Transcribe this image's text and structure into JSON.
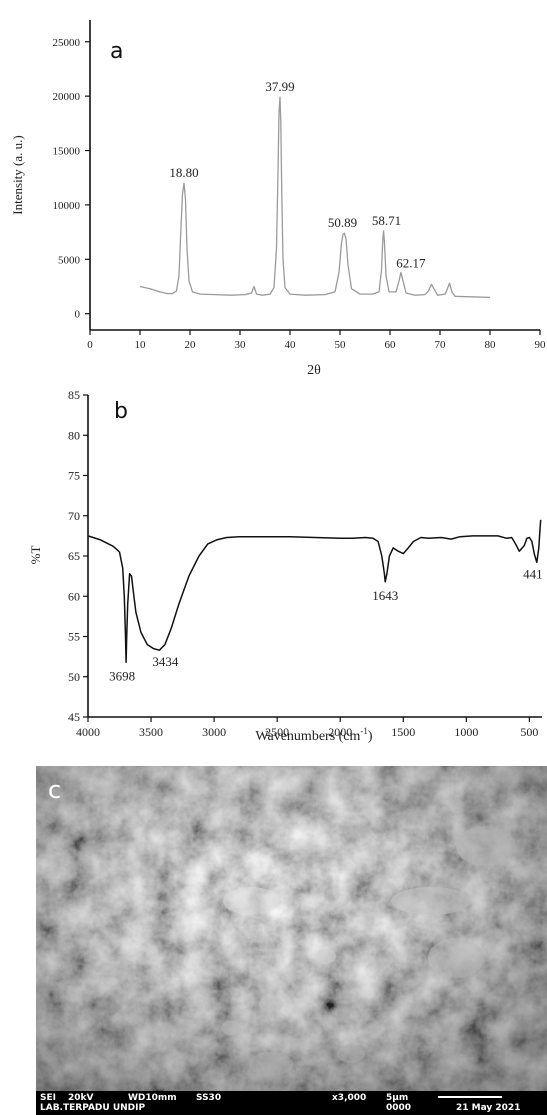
{
  "chart_data": [
    {
      "type": "line",
      "panel": "a",
      "xlabel": "2θ",
      "ylabel": "Intensity (a. u.)",
      "xlim": [
        0,
        90
      ],
      "ylim": [
        -1500,
        27000
      ],
      "xticks": [
        0,
        10,
        20,
        30,
        40,
        50,
        60,
        70,
        80,
        90
      ],
      "yticks": [
        0,
        5000,
        10000,
        15000,
        20000,
        25000
      ],
      "grid": false,
      "peaks": [
        {
          "label": "18.80",
          "x": 18.8,
          "y": 12000
        },
        {
          "label": "37.99",
          "x": 37.99,
          "y": 19900
        },
        {
          "label": "50.89",
          "x": 50.89,
          "y": 7400
        },
        {
          "label": "58.71",
          "x": 58.71,
          "y": 7600
        },
        {
          "label": "62.17",
          "x": 62.17,
          "y": 3800
        }
      ],
      "series": [
        {
          "x": [
            10,
            12,
            14,
            15.5,
            16.5,
            17.3,
            17.8,
            18.2,
            18.5,
            18.8,
            19.1,
            19.4,
            19.8,
            20.5,
            22,
            25,
            28,
            31,
            32.3,
            32.8,
            33.3,
            34.5,
            36,
            36.8,
            37.3,
            37.6,
            37.8,
            37.99,
            38.15,
            38.35,
            38.6,
            39,
            40,
            43,
            47,
            49,
            49.8,
            50.3,
            50.6,
            50.89,
            51.2,
            51.6,
            52.3,
            54,
            56.5,
            57.8,
            58.3,
            58.55,
            58.71,
            58.9,
            59.2,
            59.8,
            61.2,
            61.8,
            62.17,
            62.5,
            63.2,
            65,
            67,
            67.7,
            68.3,
            68.9,
            69.5,
            71,
            71.5,
            71.9,
            72.4,
            73,
            76,
            80
          ],
          "values": [
            2500,
            2300,
            2000,
            1850,
            1850,
            2100,
            3500,
            8000,
            11000,
            12000,
            10500,
            6000,
            3000,
            2000,
            1800,
            1750,
            1700,
            1750,
            1900,
            2500,
            1800,
            1700,
            1800,
            2400,
            6000,
            13000,
            18500,
            19900,
            17500,
            11000,
            5000,
            2400,
            1800,
            1700,
            1750,
            2000,
            3800,
            6500,
            7300,
            7400,
            6900,
            4500,
            2300,
            1800,
            1800,
            2000,
            4000,
            6800,
            7600,
            6500,
            3500,
            2000,
            2000,
            3000,
            3800,
            3200,
            1900,
            1700,
            1750,
            2100,
            2700,
            2200,
            1700,
            1800,
            2300,
            2800,
            2000,
            1600,
            1550,
            1500
          ]
        }
      ]
    },
    {
      "type": "line",
      "panel": "b",
      "xlabel": "Wavenumbers (cm",
      "xlabel_sup": "-1",
      "xlabel_close": ")",
      "ylabel": "%T",
      "xlim": [
        4000,
        400
      ],
      "ylim": [
        45,
        85
      ],
      "xticks": [
        4000,
        3500,
        3000,
        2500,
        2000,
        1500,
        1000,
        500
      ],
      "yticks": [
        45,
        50,
        55,
        60,
        65,
        70,
        75,
        80,
        85
      ],
      "grid": false,
      "peaks": [
        {
          "label": "3698",
          "x": 3698,
          "y": 51.8
        },
        {
          "label": "3434",
          "x": 3434,
          "y": 53.3
        },
        {
          "label": "1643",
          "x": 1643,
          "y": 61.8
        },
        {
          "label": "441",
          "x": 441,
          "y": 64.2
        }
      ],
      "series": [
        {
          "x": [
            4000,
            3900,
            3800,
            3750,
            3725,
            3712,
            3703,
            3698,
            3693,
            3685,
            3670,
            3655,
            3640,
            3620,
            3580,
            3530,
            3480,
            3434,
            3390,
            3340,
            3280,
            3200,
            3120,
            3050,
            2980,
            2900,
            2800,
            2600,
            2400,
            2200,
            2000,
            1900,
            1800,
            1740,
            1700,
            1670,
            1650,
            1643,
            1630,
            1610,
            1580,
            1540,
            1500,
            1460,
            1420,
            1360,
            1300,
            1200,
            1120,
            1050,
            950,
            850,
            750,
            680,
            640,
            610,
            580,
            540,
            520,
            500,
            480,
            460,
            441,
            425,
            415,
            410
          ],
          "values": [
            67.5,
            67,
            66.2,
            65.5,
            63.5,
            60,
            55,
            51.8,
            55,
            59,
            62.8,
            62.5,
            60.5,
            58,
            55.5,
            54,
            53.5,
            53.3,
            54,
            56,
            59,
            62.5,
            65,
            66.5,
            67,
            67.3,
            67.4,
            67.4,
            67.4,
            67.3,
            67.2,
            67.2,
            67.3,
            67.2,
            66.8,
            65,
            62.8,
            61.8,
            62.8,
            65,
            66,
            65.6,
            65.3,
            66,
            66.8,
            67.3,
            67.2,
            67.3,
            67.1,
            67.4,
            67.5,
            67.5,
            67.5,
            67.2,
            67.3,
            66.5,
            65.6,
            66.3,
            67.2,
            67.3,
            66.8,
            65.2,
            64.2,
            66,
            68.5,
            69.5
          ]
        }
      ]
    }
  ],
  "panel_a": {
    "letter": "a"
  },
  "panel_b": {
    "letter": "b"
  },
  "panel_c": {
    "letter": "c",
    "info_line1": [
      "SEI",
      "20kV",
      "WD10mm",
      "SS30",
      "x3,000",
      "5μm"
    ],
    "info_line2": [
      "LAB.TERPADU UNDIP",
      "0000",
      "21 May 2021"
    ]
  }
}
